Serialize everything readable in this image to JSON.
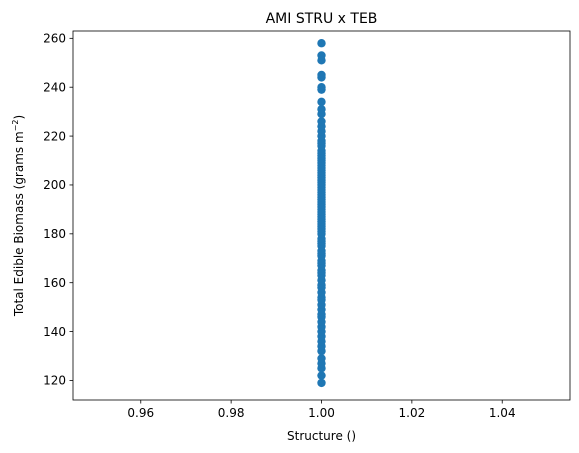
{
  "chart_data": {
    "type": "scatter",
    "title": "AMI STRU x TEB",
    "xlabel": "Structure ()",
    "ylabel_main": "Total Edible Biomass (grams m",
    "ylabel_sup": "−2",
    "ylabel_end": ")",
    "xlim": [
      0.945,
      1.055
    ],
    "ylim": [
      112,
      263
    ],
    "xticks": [
      0.96,
      0.98,
      1.0,
      1.02,
      1.04
    ],
    "xtick_labels": [
      "0.96",
      "0.98",
      "1.00",
      "1.02",
      "1.04"
    ],
    "yticks": [
      120,
      140,
      160,
      180,
      200,
      220,
      240,
      260
    ],
    "ytick_labels": [
      "120",
      "140",
      "160",
      "180",
      "200",
      "220",
      "240",
      "260"
    ],
    "grid": false,
    "marker_color": "#1f77b4",
    "series": [
      {
        "x": [
          1,
          1,
          1,
          1,
          1,
          1,
          1,
          1,
          1,
          1,
          1,
          1,
          1,
          1,
          1,
          1,
          1,
          1,
          1,
          1,
          1,
          1,
          1,
          1,
          1,
          1,
          1,
          1,
          1,
          1,
          1,
          1,
          1,
          1,
          1,
          1,
          1,
          1,
          1,
          1,
          1,
          1,
          1,
          1,
          1,
          1,
          1,
          1,
          1,
          1,
          1,
          1,
          1,
          1,
          1,
          1,
          1,
          1,
          1,
          1,
          1,
          1,
          1,
          1,
          1,
          1,
          1,
          1,
          1,
          1,
          1,
          1,
          1,
          1,
          1,
          1,
          1,
          1,
          1,
          1,
          1,
          1,
          1,
          1,
          1,
          1,
          1
        ],
        "y": [
          119,
          122,
          125,
          127,
          129,
          132,
          134,
          136,
          138,
          140,
          142,
          144,
          146,
          147,
          149,
          151,
          153,
          154,
          156,
          158,
          159,
          161,
          163,
          164,
          165,
          167,
          168,
          169,
          171,
          172,
          173,
          175,
          176,
          177,
          178,
          180,
          181,
          182,
          183,
          184,
          185,
          186,
          187,
          188,
          189,
          190,
          191,
          192,
          193,
          194,
          195,
          196,
          197,
          198,
          199,
          200,
          201,
          202,
          203,
          204,
          205,
          206,
          207,
          208,
          209,
          210,
          211,
          212,
          213,
          214,
          216,
          217,
          218,
          220,
          222,
          224,
          226,
          229,
          231,
          234,
          239,
          240,
          244,
          245,
          251,
          253,
          258
        ]
      }
    ]
  }
}
